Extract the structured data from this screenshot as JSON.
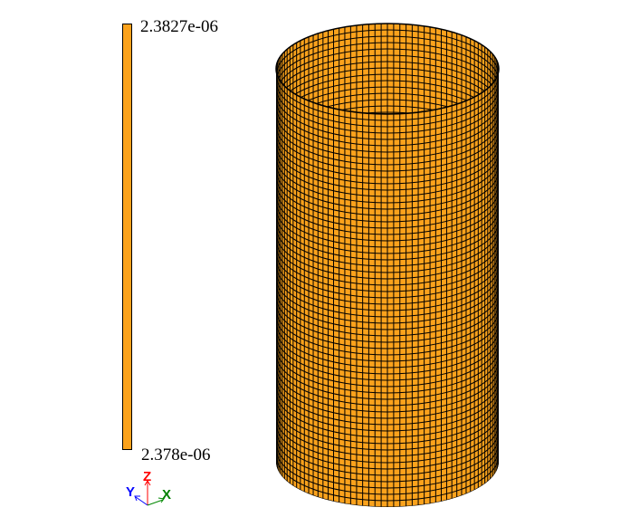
{
  "legend": {
    "max_label": "2.3827e-06",
    "min_label": "2.378e-06",
    "color": "#FBA21C"
  },
  "mesh": {
    "fill_color": "#FBA21C",
    "edge_color": "#000000",
    "shape": "cylinder"
  },
  "triad": {
    "x_label": "X",
    "y_label": "Y",
    "z_label": "Z",
    "x_color": "#008000",
    "y_color": "#0000FF",
    "z_color": "#FF0000"
  }
}
